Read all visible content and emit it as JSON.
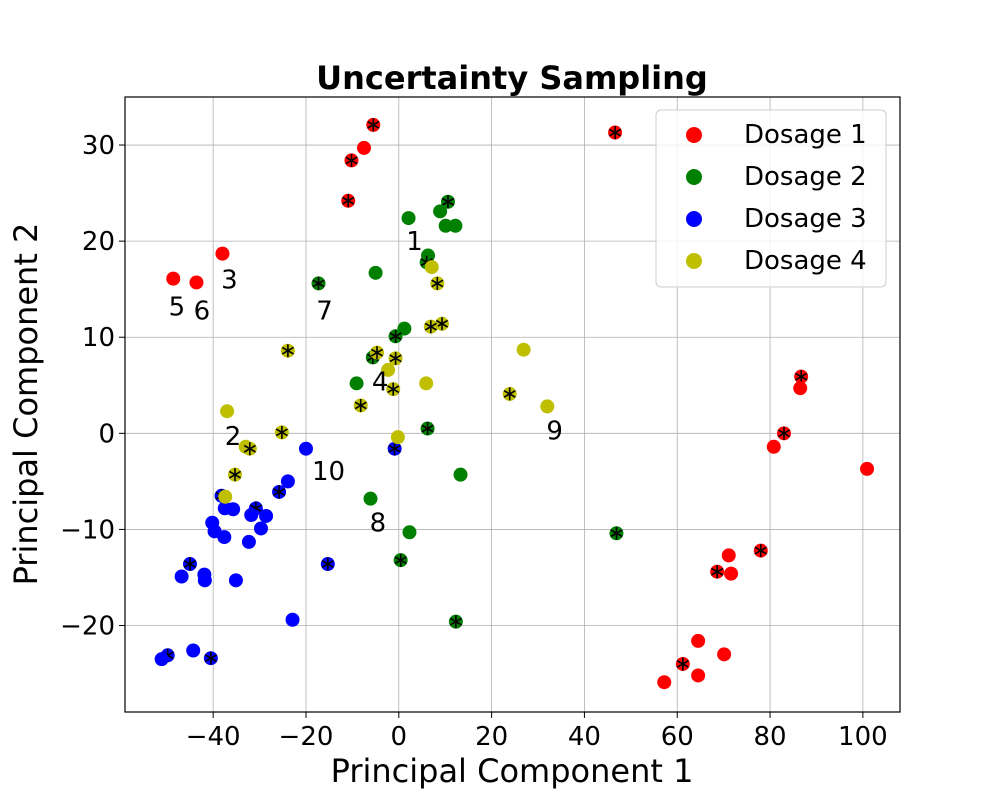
{
  "chart_data": {
    "type": "scatter",
    "title": "Uncertainty Sampling",
    "xlabel": "Principal Component 1",
    "ylabel": "Principal Component 2",
    "xlim": [
      -59,
      108
    ],
    "ylim": [
      -29,
      35
    ],
    "xticks": [
      -40,
      -20,
      0,
      20,
      40,
      60,
      80,
      100
    ],
    "yticks": [
      -20,
      -10,
      0,
      10,
      20,
      30
    ],
    "xtick_labels": [
      "−40",
      "−20",
      "0",
      "20",
      "40",
      "60",
      "80",
      "100"
    ],
    "ytick_labels": [
      "−20",
      "−10",
      "0",
      "10",
      "20",
      "30"
    ],
    "grid": true,
    "legend_position": "top-right",
    "sampled_marker": "*",
    "series": [
      {
        "name": "Dosage 1",
        "color": "#ff0000",
        "points": [
          {
            "x": -5.5,
            "y": 32.1,
            "sampled": true
          },
          {
            "x": -7.5,
            "y": 29.7,
            "sampled": false
          },
          {
            "x": -10.2,
            "y": 28.4,
            "sampled": true
          },
          {
            "x": -10.9,
            "y": 24.2,
            "sampled": true
          },
          {
            "x": -38,
            "y": 18.7,
            "sampled": false
          },
          {
            "x": -48.6,
            "y": 16.1,
            "sampled": false
          },
          {
            "x": -43.6,
            "y": 15.7,
            "sampled": false
          },
          {
            "x": 46.6,
            "y": 31.3,
            "sampled": true
          },
          {
            "x": 86.7,
            "y": 5.9,
            "sampled": true
          },
          {
            "x": 86.5,
            "y": 4.7,
            "sampled": false
          },
          {
            "x": 83,
            "y": 0,
            "sampled": true
          },
          {
            "x": 80.8,
            "y": -1.4,
            "sampled": false
          },
          {
            "x": 100.9,
            "y": -3.7,
            "sampled": false
          },
          {
            "x": 78,
            "y": -12.2,
            "sampled": true
          },
          {
            "x": 71.1,
            "y": -12.7,
            "sampled": false
          },
          {
            "x": 68.6,
            "y": -14.4,
            "sampled": true
          },
          {
            "x": 71.6,
            "y": -14.6,
            "sampled": false
          },
          {
            "x": 64.5,
            "y": -21.6,
            "sampled": false
          },
          {
            "x": 70.1,
            "y": -23,
            "sampled": false
          },
          {
            "x": 61.2,
            "y": -24,
            "sampled": true
          },
          {
            "x": 64.5,
            "y": -25.2,
            "sampled": false
          },
          {
            "x": 57.2,
            "y": -25.9,
            "sampled": false
          }
        ]
      },
      {
        "name": "Dosage 2",
        "color": "#008000",
        "points": [
          {
            "x": 10.6,
            "y": 24.1,
            "sampled": true
          },
          {
            "x": 2.1,
            "y": 22.4,
            "sampled": false
          },
          {
            "x": 8.9,
            "y": 23.1,
            "sampled": false
          },
          {
            "x": 10.1,
            "y": 21.6,
            "sampled": false
          },
          {
            "x": 12.2,
            "y": 21.6,
            "sampled": false
          },
          {
            "x": 6.3,
            "y": 18.5,
            "sampled": false
          },
          {
            "x": 6,
            "y": 17.8,
            "sampled": true
          },
          {
            "x": -5,
            "y": 16.7,
            "sampled": false
          },
          {
            "x": -17.3,
            "y": 15.6,
            "sampled": true
          },
          {
            "x": 1.2,
            "y": 10.9,
            "sampled": false
          },
          {
            "x": -0.7,
            "y": 10.1,
            "sampled": true
          },
          {
            "x": -5.6,
            "y": 7.9,
            "sampled": true
          },
          {
            "x": -9.1,
            "y": 5.2,
            "sampled": false
          },
          {
            "x": 6.2,
            "y": 0.5,
            "sampled": true
          },
          {
            "x": 13.3,
            "y": -4.3,
            "sampled": false
          },
          {
            "x": -6.1,
            "y": -6.8,
            "sampled": false
          },
          {
            "x": 2.3,
            "y": -10.3,
            "sampled": false
          },
          {
            "x": 0.4,
            "y": -13.2,
            "sampled": true
          },
          {
            "x": 46.9,
            "y": -10.4,
            "sampled": true
          },
          {
            "x": 12.3,
            "y": -19.6,
            "sampled": true
          }
        ]
      },
      {
        "name": "Dosage 3",
        "color": "#0000ff",
        "points": [
          {
            "x": -20,
            "y": -1.6,
            "sampled": false
          },
          {
            "x": -0.9,
            "y": -1.6,
            "sampled": true
          },
          {
            "x": -23.9,
            "y": -5,
            "sampled": false
          },
          {
            "x": -25.8,
            "y": -6.1,
            "sampled": true
          },
          {
            "x": -38.2,
            "y": -6.5,
            "sampled": true
          },
          {
            "x": -37.5,
            "y": -7.8,
            "sampled": false
          },
          {
            "x": -35.7,
            "y": -7.9,
            "sampled": false
          },
          {
            "x": -30.8,
            "y": -7.8,
            "sampled": true
          },
          {
            "x": -31.8,
            "y": -8.5,
            "sampled": false
          },
          {
            "x": -28.6,
            "y": -8.6,
            "sampled": false
          },
          {
            "x": -40.2,
            "y": -9.3,
            "sampled": false
          },
          {
            "x": -39.7,
            "y": -10.2,
            "sampled": false
          },
          {
            "x": -29.7,
            "y": -9.9,
            "sampled": false
          },
          {
            "x": -37.6,
            "y": -10.8,
            "sampled": false
          },
          {
            "x": -32.3,
            "y": -11.3,
            "sampled": false
          },
          {
            "x": -45,
            "y": -13.6,
            "sampled": true
          },
          {
            "x": -15.3,
            "y": -13.6,
            "sampled": true
          },
          {
            "x": -41.9,
            "y": -14.7,
            "sampled": false
          },
          {
            "x": -46.8,
            "y": -14.9,
            "sampled": false
          },
          {
            "x": -41.8,
            "y": -15.3,
            "sampled": false
          },
          {
            "x": -35.1,
            "y": -15.3,
            "sampled": false
          },
          {
            "x": -22.9,
            "y": -19.4,
            "sampled": false
          },
          {
            "x": -44.3,
            "y": -22.6,
            "sampled": false
          },
          {
            "x": -49.8,
            "y": -23.1,
            "sampled": true
          },
          {
            "x": -40.5,
            "y": -23.4,
            "sampled": true
          },
          {
            "x": -51.1,
            "y": -23.5,
            "sampled": false
          }
        ]
      },
      {
        "name": "Dosage 4",
        "color": "#bfbf00",
        "points": [
          {
            "x": 7.1,
            "y": 17.3,
            "sampled": false
          },
          {
            "x": 8.3,
            "y": 15.6,
            "sampled": true
          },
          {
            "x": 9.3,
            "y": 11.4,
            "sampled": true
          },
          {
            "x": 6.9,
            "y": 11.1,
            "sampled": true
          },
          {
            "x": -23.9,
            "y": 8.6,
            "sampled": true
          },
          {
            "x": -4.7,
            "y": 8.4,
            "sampled": true
          },
          {
            "x": 26.9,
            "y": 8.7,
            "sampled": false
          },
          {
            "x": -0.7,
            "y": 7.8,
            "sampled": true
          },
          {
            "x": -2.3,
            "y": 6.6,
            "sampled": false
          },
          {
            "x": 5.9,
            "y": 5.2,
            "sampled": false
          },
          {
            "x": -1.2,
            "y": 4.6,
            "sampled": true
          },
          {
            "x": 23.9,
            "y": 4.1,
            "sampled": true
          },
          {
            "x": -8.2,
            "y": 2.9,
            "sampled": true
          },
          {
            "x": 32,
            "y": 2.8,
            "sampled": false
          },
          {
            "x": -37,
            "y": 2.3,
            "sampled": false
          },
          {
            "x": -25.2,
            "y": 0.1,
            "sampled": true
          },
          {
            "x": -0.2,
            "y": -0.4,
            "sampled": false
          },
          {
            "x": -33,
            "y": -1.4,
            "sampled": false
          },
          {
            "x": -32.1,
            "y": -1.6,
            "sampled": true
          },
          {
            "x": -35.3,
            "y": -4.3,
            "sampled": true
          },
          {
            "x": -37.4,
            "y": -6.6,
            "sampled": false
          }
        ]
      }
    ],
    "annotations": [
      {
        "text": "1",
        "x": 1.6,
        "y": 20
      },
      {
        "text": "2",
        "x": -37.5,
        "y": -0.3
      },
      {
        "text": "3",
        "x": -38.3,
        "y": 16
      },
      {
        "text": "4",
        "x": -5.8,
        "y": 5.4
      },
      {
        "text": "5",
        "x": -49.6,
        "y": 13.2
      },
      {
        "text": "6",
        "x": -44.2,
        "y": 12.8
      },
      {
        "text": "7",
        "x": -17.8,
        "y": 12.8
      },
      {
        "text": "8",
        "x": -6.3,
        "y": -9.3
      },
      {
        "text": "9",
        "x": 31.8,
        "y": 0.3
      },
      {
        "text": "10",
        "x": -18.7,
        "y": -3.9
      }
    ]
  }
}
